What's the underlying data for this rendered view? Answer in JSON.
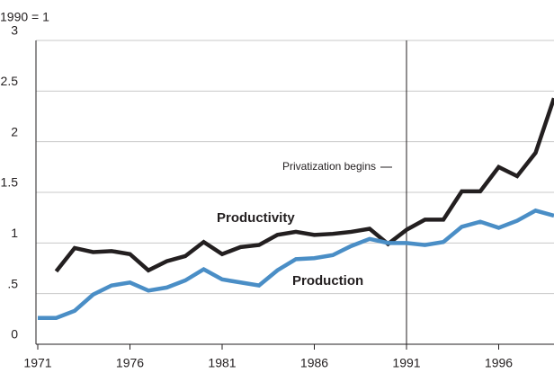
{
  "chart_data": {
    "type": "line",
    "subtitle": "1990 = 1",
    "x": [
      1971,
      1972,
      1973,
      1974,
      1975,
      1976,
      1977,
      1978,
      1979,
      1980,
      1981,
      1982,
      1983,
      1984,
      1985,
      1986,
      1987,
      1988,
      1989,
      1990,
      1991,
      1992,
      1993,
      1994,
      1995,
      1996,
      1997,
      1998,
      1999
    ],
    "series": [
      {
        "name": "Productivity",
        "color": "#231f20",
        "values": [
          null,
          0.72,
          0.95,
          0.91,
          0.92,
          0.89,
          0.73,
          0.82,
          0.87,
          1.01,
          0.89,
          0.96,
          0.98,
          1.08,
          1.11,
          1.08,
          1.09,
          1.11,
          1.14,
          0.99,
          1.13,
          1.23,
          1.23,
          1.51,
          1.51,
          1.75,
          1.66,
          1.89,
          2.43
        ]
      },
      {
        "name": "Production",
        "color": "#4a8ec6",
        "values": [
          0.26,
          0.26,
          0.33,
          0.49,
          0.58,
          0.61,
          0.53,
          0.56,
          0.63,
          0.74,
          0.64,
          0.61,
          0.58,
          0.73,
          0.84,
          0.85,
          0.88,
          0.97,
          1.04,
          1.0,
          1.0,
          0.98,
          1.01,
          1.16,
          1.21,
          1.15,
          1.22,
          1.32,
          1.27
        ]
      }
    ],
    "annotation": {
      "text": "Privatization begins",
      "x": 1991
    },
    "xlim": [
      1971,
      1999
    ],
    "xticks": [
      1971,
      1976,
      1981,
      1986,
      1991,
      1996
    ],
    "ylim": [
      0,
      3
    ],
    "yticks": [
      0,
      {
        "value": 0.5,
        "label": ".5"
      },
      1,
      1.5,
      2,
      2.5,
      3
    ],
    "grid": true
  }
}
